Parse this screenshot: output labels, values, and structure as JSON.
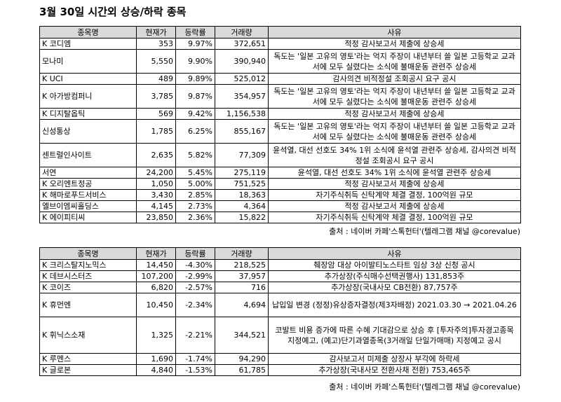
{
  "title": "3월 30일  시간외 상승/하락 종목",
  "headers": [
    "종목명",
    "현재가",
    "등락률",
    "거래량",
    "사유"
  ],
  "rising": [
    [
      "K 코디엠",
      "353",
      "9.97%",
      "372,651",
      "적정 감사보고서 제출에 상승세"
    ],
    [
      "모나미",
      "5,550",
      "9.90%",
      "390,940",
      "독도는 '일본 고유의 영토'라는 억지 주장이 내년부터 쓸 일본 고등학교 교과서에 모두 실렸다는 소식에 불매운동 관련주 상승세"
    ],
    [
      "K UCI",
      "489",
      "9.89%",
      "525,012",
      "감사의견 비적정설 조회공시 요구 공시"
    ],
    [
      "K 아가방컴퍼니",
      "3,785",
      "9.87%",
      "354,957",
      "독도는 '일본 고유의 영토'라는 억지 주장이 내년부터 쓸 일본 고등학교 교과서에 모두 실렸다는 소식에 불매운동 관련주 상승세"
    ],
    [
      "K 디지탈옵틱",
      "569",
      "9.42%",
      "1,156,538",
      "적정 감사보고서 제출에 상승세"
    ],
    [
      "신성통상",
      "1,785",
      "6.25%",
      "855,167",
      "독도는 '일본 고유의 영토'라는 억지 주장이 내년부터 쓸 일본 고등학교 교과서에 모두 실렸다는 소식에 불매운동 관련주 상승세"
    ],
    [
      "센트럴인사이트",
      "2,635",
      "5.82%",
      "77,309",
      "윤석열, 대선 선호도 34% 1위 소식에 윤석열 관련주 상승세, 감사의견 비적정설 조회공시 요구 공시"
    ],
    [
      "서연",
      "24,200",
      "5.45%",
      "275,119",
      "윤석열, 대선 선호도 34% 1위 소식에 윤석열 관련주 상승세"
    ],
    [
      "K 오리엔트정공",
      "1,050",
      "5.00%",
      "751,525",
      "적정 감사보고서 제출에 상승세"
    ],
    [
      "K 해마로푸드서비스",
      "3,430",
      "2.85%",
      "18,363",
      "자기주식취득 신탁계약 체결 결정, 100억원 규모"
    ],
    [
      "엘브이엠씨홀딩스",
      "4,145",
      "2.73%",
      "4,364",
      "적정 감사보고서 제출에 상승세"
    ],
    [
      "K 에이피티씨",
      "23,850",
      "2.36%",
      "15,822",
      "자기주식취득 신탁계약 체결 결정, 100억원 규모"
    ]
  ],
  "falling": [
    [
      "K 크리스탈지노믹스",
      "14,450",
      "-4.30%",
      "218,525",
      "췌장암 대상 아이발티노스타트 임상 3상 신청 공시"
    ],
    [
      "K 데브시스터즈",
      "107,200",
      "-2.99%",
      "37,957",
      "추가상장(주식매수선택권행사) 131,853주"
    ],
    [
      "K 코이즈",
      "6,820",
      "-2.57%",
      "716",
      "추가상장(국내사모 CB전환) 87,757주"
    ],
    [
      "K 휴먼엔",
      "10,450",
      "-2.34%",
      "4,694",
      "납입일 변경 (정정)유상증자결정(제3자배정) 2021.03.30 → 2021.04.26"
    ],
    [
      "K 휘닉스소재",
      "1,325",
      "-2.21%",
      "344,521",
      "코발트 비용 증가에 따른 수혜 기대감으로 상승 후 [투자주의]투자경고종목 지정예고, (예고)단기과열종목(3거래일 단일가매매) 지정예고 공시"
    ],
    [
      "K 루멘스",
      "1,690",
      "-1.74%",
      "94,290",
      "감사보고서 미제출 상장사 부각에 하락세"
    ],
    [
      "K 글로본",
      "4,840",
      "-1.53%",
      "61,785",
      "추가상장(국내사모 전환사채 전환) 753,465주"
    ]
  ],
  "source": "출처 : 네이버 카페'스톡헌터'(텔레그램 채널 @corevalue)"
}
